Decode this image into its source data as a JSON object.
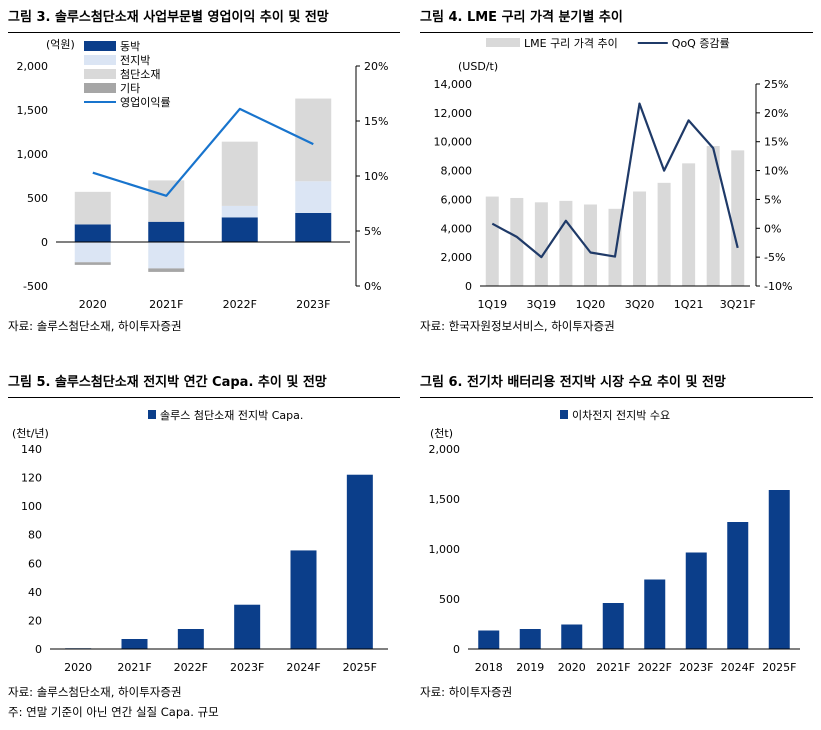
{
  "panels": [
    {
      "title": "그림 3. 솔루스첨단소재 사업부문별 영업이익 추이 및 전망",
      "source": "자료: 솔루스첨단소재, 하이투자증권"
    },
    {
      "title": "그림 4. LME 구리 가격 분기별 추이",
      "source": "자료: 한국자원정보서비스, 하이투자증권"
    },
    {
      "title": "그림 5. 솔루스첨단소재 전지박 연간 Capa. 추이 및 전망",
      "source": "자료: 솔루스첨단소재, 하이투자증권",
      "note": "주: 연말 기준이 아닌 연간 실질 Capa. 규모"
    },
    {
      "title": "그림 6. 전기차 배터리용 전지박 시장 수요 추이 및 전망",
      "source": "자료: 하이투자증권"
    }
  ],
  "chart_data": [
    {
      "type": "bar",
      "stacked": true,
      "unit_left": "(억원)",
      "categories": [
        "2020",
        "2021F",
        "2022F",
        "2023F"
      ],
      "series": [
        {
          "name": "동박",
          "type": "bar",
          "color": "#0b3e8a",
          "values": [
            200,
            230,
            280,
            330
          ]
        },
        {
          "name": "전지박",
          "type": "bar",
          "color": "#dbe5f4",
          "values": [
            -230,
            -300,
            130,
            360
          ]
        },
        {
          "name": "첨단소재",
          "type": "bar",
          "color": "#d9d9d9",
          "values": [
            370,
            470,
            730,
            940
          ]
        },
        {
          "name": "기타",
          "type": "bar",
          "color": "#a6a6a6",
          "values": [
            -30,
            -40,
            0,
            0
          ]
        },
        {
          "name": "영업이익률",
          "type": "line",
          "axis": "right",
          "color": "#1874cd",
          "values": [
            10.3,
            8.2,
            16.1,
            12.9
          ]
        }
      ],
      "ylim": [
        -500,
        2000
      ],
      "yticks": [
        "-500",
        "0",
        "500",
        "1,000",
        "1,500",
        "2,000"
      ],
      "y2lim": [
        0,
        20
      ],
      "y2ticks": [
        "0%",
        "5%",
        "10%",
        "15%",
        "20%"
      ],
      "legend": "top-left"
    },
    {
      "type": "bar",
      "unit_left": "(USD/t)",
      "categories": [
        "1Q19",
        "2Q19",
        "3Q19",
        "4Q19",
        "1Q20",
        "2Q20",
        "3Q20",
        "4Q20",
        "1Q21",
        "2Q21",
        "3Q21F"
      ],
      "xticklabels": [
        "1Q19",
        "",
        "3Q19",
        "",
        "1Q20",
        "",
        "3Q20",
        "",
        "1Q21",
        "",
        "3Q21F"
      ],
      "series": [
        {
          "name": "LME 구리 가격 추이",
          "type": "bar",
          "color": "#d9d9d9",
          "values": [
            6200,
            6100,
            5800,
            5900,
            5650,
            5350,
            6550,
            7150,
            8500,
            9700,
            9400
          ]
        },
        {
          "name": "QoQ 증감률",
          "type": "line",
          "axis": "right",
          "color": "#1f3a68",
          "values": [
            0.8,
            -1.5,
            -5.0,
            1.3,
            -4.2,
            -4.9,
            21.6,
            10.0,
            18.7,
            13.9,
            -3.4
          ]
        }
      ],
      "ylim": [
        0,
        14000
      ],
      "yticks": [
        "0",
        "2,000",
        "4,000",
        "6,000",
        "8,000",
        "10,000",
        "12,000",
        "14,000"
      ],
      "y2lim": [
        -10,
        25
      ],
      "y2ticks": [
        "-10%",
        "-5%",
        "0%",
        "5%",
        "10%",
        "15%",
        "20%",
        "25%"
      ],
      "legend": "top"
    },
    {
      "type": "bar",
      "unit_left": "(천t/년)",
      "categories": [
        "2020",
        "2021F",
        "2022F",
        "2023F",
        "2024F",
        "2025F"
      ],
      "series": [
        {
          "name": "솔루스 첨단소재 전지박 Capa.",
          "type": "bar",
          "color": "#0b3e8a",
          "values": [
            0.5,
            7,
            14,
            31,
            69,
            122
          ]
        }
      ],
      "ylim": [
        0,
        140
      ],
      "yticks": [
        "0",
        "20",
        "40",
        "60",
        "80",
        "100",
        "120",
        "140"
      ],
      "legend": "top"
    },
    {
      "type": "bar",
      "unit_left": "(천t)",
      "categories": [
        "2018",
        "2019",
        "2020",
        "2021F",
        "2022F",
        "2023F",
        "2024F",
        "2025F"
      ],
      "series": [
        {
          "name": "이차전지 전지박 수요",
          "type": "bar",
          "color": "#0b3e8a",
          "values": [
            185,
            200,
            245,
            460,
            695,
            965,
            1270,
            1590
          ]
        }
      ],
      "ylim": [
        0,
        2000
      ],
      "yticks": [
        "0",
        "500",
        "1,000",
        "1,500",
        "2,000"
      ],
      "legend": "top"
    }
  ]
}
